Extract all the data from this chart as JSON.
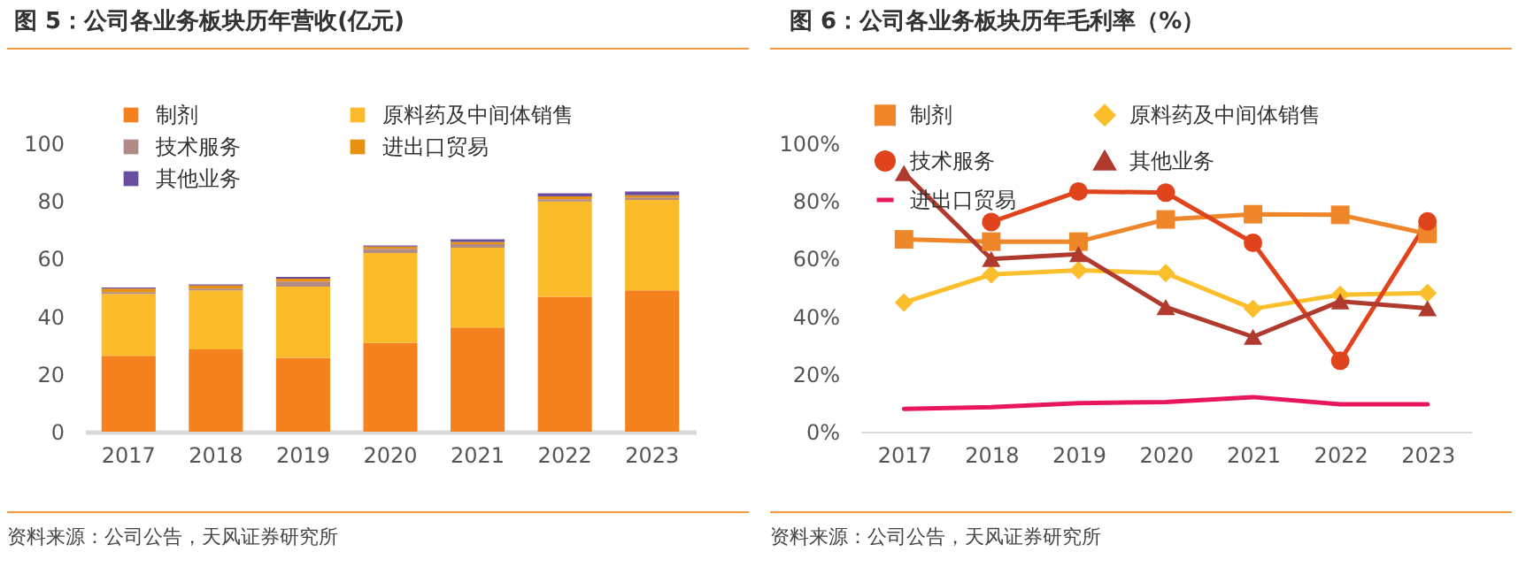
{
  "chart_data": [
    {
      "type": "bar",
      "title": "图 5：公司各业务板块历年营收(亿元)",
      "stacked": true,
      "legend": "top",
      "grid": false,
      "categories": [
        "2017",
        "2018",
        "2019",
        "2020",
        "2021",
        "2022",
        "2023"
      ],
      "ylim": [
        0,
        100
      ],
      "yticks": [
        0,
        20,
        40,
        60,
        80,
        100
      ],
      "annotations": [
        "资料来源：公司公告，天风证券研究所"
      ],
      "series": [
        {
          "name": "制剂",
          "color": "#f5821f",
          "values": [
            26.3,
            28.5,
            25.6,
            30.8,
            36.1,
            46.8,
            49.0
          ]
        },
        {
          "name": "原料药及中间体销售",
          "color": "#fbbb2a",
          "values": [
            21.5,
            20.5,
            24.7,
            31.2,
            27.7,
            33.0,
            31.4
          ]
        },
        {
          "name": "技术服务",
          "color": "#b08a84",
          "values": [
            0.6,
            0.6,
            1.8,
            1.4,
            1.2,
            0.8,
            0.8
          ]
        },
        {
          "name": "进出口贸易",
          "color": "#e8910f",
          "values": [
            1.2,
            1.1,
            1.0,
            0.8,
            0.8,
            1.0,
            0.8
          ]
        },
        {
          "name": "其他业务",
          "color": "#6a4ea0",
          "values": [
            0.4,
            0.4,
            0.6,
            0.4,
            0.9,
            1.1,
            1.3
          ]
        }
      ]
    },
    {
      "type": "line",
      "title": "图 6：公司各业务板块历年毛利率（%）",
      "legend": "top",
      "grid": false,
      "categories": [
        "2017",
        "2018",
        "2019",
        "2020",
        "2021",
        "2022",
        "2023"
      ],
      "ylim": [
        0,
        100
      ],
      "yticks": [
        {
          "value": 0,
          "label": "0%"
        },
        {
          "value": 20,
          "label": "20%"
        },
        {
          "value": 40,
          "label": "40%"
        },
        {
          "value": 60,
          "label": "60%"
        },
        {
          "value": 80,
          "label": "80%"
        },
        {
          "value": 100,
          "label": "100%"
        }
      ],
      "annotations": [
        "资料来源：公司公告，天风证券研究所"
      ],
      "series": [
        {
          "name": "制剂",
          "color": "#f0862a",
          "marker": "square",
          "values": [
            66.7,
            65.9,
            65.9,
            73.6,
            75.4,
            75.2,
            68.6
          ]
        },
        {
          "name": "原料药及中间体销售",
          "color": "#fbbf2c",
          "marker": "diamond",
          "values": [
            44.8,
            54.5,
            56.0,
            55.0,
            42.6,
            47.5,
            48.1
          ]
        },
        {
          "name": "技术服务",
          "color": "#e0441c",
          "marker": "circle",
          "values": [
            null,
            72.7,
            83.3,
            82.9,
            65.5,
            24.6,
            72.9
          ]
        },
        {
          "name": "其他业务",
          "color": "#b03a2e",
          "marker": "triangle",
          "values": [
            89.7,
            59.9,
            61.6,
            43.2,
            32.9,
            45.2,
            42.8
          ]
        },
        {
          "name": "进出口贸易",
          "color": "#e8175d",
          "marker": "none",
          "values": [
            7.9,
            8.5,
            9.9,
            10.3,
            12.0,
            9.5,
            9.5
          ]
        }
      ]
    }
  ]
}
